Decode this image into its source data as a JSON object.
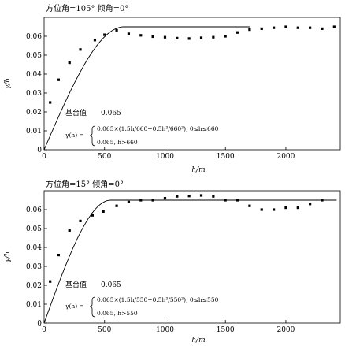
{
  "chart_data": [
    {
      "type": "scatter",
      "title": "方位角=105° 倾角=0°",
      "xlabel": "h/m",
      "ylabel": "γ/h",
      "xlim": [
        0,
        2450
      ],
      "ylim": [
        0,
        0.07
      ],
      "xticks": [
        0,
        500,
        1000,
        1500,
        2000
      ],
      "xtick_labels": [
        "0",
        "500",
        "1000",
        "1500",
        "2000"
      ],
      "yticks": [
        0,
        0.01,
        0.02,
        0.03,
        0.04,
        0.05,
        0.06
      ],
      "ytick_labels": [
        "0",
        "0.01",
        "0.02",
        "0.03",
        "0.04",
        "0.05",
        "0.06"
      ],
      "grid": false,
      "series": [
        {
          "kind": "points",
          "x": [
            50,
            120,
            210,
            300,
            420,
            500,
            600,
            700,
            800,
            900,
            1000,
            1100,
            1200,
            1300,
            1400,
            1500,
            1600,
            1700,
            1800,
            1900,
            2000,
            2100,
            2200,
            2300,
            2400
          ],
          "y": [
            0.025,
            0.037,
            0.046,
            0.053,
            0.058,
            0.0608,
            0.0632,
            0.0613,
            0.0605,
            0.0598,
            0.0595,
            0.059,
            0.0588,
            0.0592,
            0.0595,
            0.06,
            0.062,
            0.0635,
            0.064,
            0.0645,
            0.065,
            0.0645,
            0.0645,
            0.064,
            0.065
          ]
        },
        {
          "kind": "spherical-model",
          "sill": 0.065,
          "range": 660,
          "x_max": 1700
        }
      ],
      "annotations": {
        "sill_label": "基台值",
        "sill_value": "0.065",
        "eq_lhs": "γ(h) =",
        "eq_line1": "0.065×(1.5h/660−0.5h³/660³), 0≤h≤660",
        "eq_line2": "0.065, h>660"
      }
    },
    {
      "type": "scatter",
      "title": "方位角=15° 倾角=0°",
      "xlabel": "h/m",
      "ylabel": "γ/h",
      "xlim": [
        0,
        2450
      ],
      "ylim": [
        0,
        0.07
      ],
      "xticks": [
        0,
        500,
        1000,
        1500,
        2000
      ],
      "xtick_labels": [
        "0",
        "500",
        "1000",
        "1500",
        "2000"
      ],
      "yticks": [
        0,
        0.01,
        0.02,
        0.03,
        0.04,
        0.05,
        0.06
      ],
      "ytick_labels": [
        "0",
        "0.01",
        "0.02",
        "0.03",
        "0.04",
        "0.05",
        "0.06"
      ],
      "grid": false,
      "series": [
        {
          "kind": "points",
          "x": [
            50,
            120,
            210,
            300,
            400,
            490,
            600,
            700,
            800,
            900,
            1000,
            1100,
            1200,
            1300,
            1400,
            1500,
            1600,
            1700,
            1800,
            1900,
            2000,
            2100,
            2200,
            2300
          ],
          "y": [
            0.022,
            0.036,
            0.049,
            0.054,
            0.057,
            0.059,
            0.062,
            0.064,
            0.065,
            0.065,
            0.066,
            0.067,
            0.0672,
            0.0675,
            0.067,
            0.065,
            0.065,
            0.062,
            0.06,
            0.06,
            0.061,
            0.061,
            0.063,
            0.065
          ]
        },
        {
          "kind": "spherical-model",
          "sill": 0.065,
          "range": 550,
          "x_max": 2420
        }
      ],
      "annotations": {
        "sill_label": "基台值",
        "sill_value": "0.065",
        "eq_lhs": "γ(h) =",
        "eq_line1": "0.065×(1.5h/550−0.5h³/550³), 0≤h≤550",
        "eq_line2": "0.065, h>550"
      }
    }
  ]
}
